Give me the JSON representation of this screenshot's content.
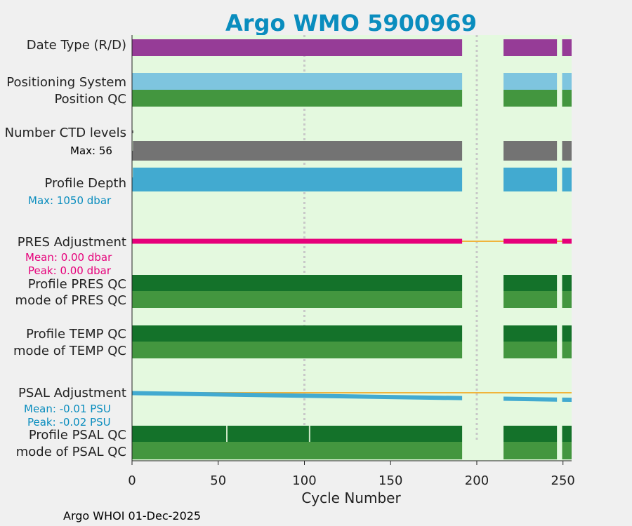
{
  "title": "Argo WMO 5900969",
  "footer": "Argo WHOI 01-Dec-2025",
  "colors": {
    "background": "#f0f0f0",
    "plot_bg": "#e4f9df",
    "title": "#0a8dbe",
    "date_type": "#963c97",
    "positioning": "#7ec5df",
    "qc_good": "#43963f",
    "qc_profile": "#14722a",
    "ctd": "#737373",
    "depth": "#42aad0",
    "pres_adj": "#e6007a",
    "psal_adj": "#42aad0",
    "zero_line": "#f0b43c",
    "ref_line": "#c8c8c8",
    "label": "#222222"
  },
  "chart_data": {
    "type": "bar",
    "xlabel": "Cycle Number",
    "xlim": [
      0,
      255
    ],
    "xticks": [
      0,
      50,
      100,
      150,
      200,
      250
    ],
    "reference_lines_x": [
      100,
      200
    ],
    "data_gaps": [
      [
        191.5,
        215.5
      ],
      [
        246.5,
        249.5
      ]
    ],
    "psal_qc_breaks": [
      55,
      103
    ],
    "rows": [
      {
        "key": "date_type",
        "label": "Date Type (R/D)"
      },
      {
        "key": "positioning",
        "label": "Positioning System"
      },
      {
        "key": "position_qc",
        "label": "Position QC"
      },
      {
        "key": "ctd_levels",
        "label": "Number CTD levels",
        "note": "Max: 56",
        "max": 56
      },
      {
        "key": "profile_depth",
        "label": "Profile Depth",
        "note": "Max: 1050 dbar",
        "max_dbar": 1050
      },
      {
        "key": "pres_adjustment",
        "label": "PRES Adjustment",
        "stats": [
          "Mean: 0.00 dbar",
          "Peak: 0.00 dbar"
        ],
        "mean": 0.0,
        "peak": 0.0
      },
      {
        "key": "profile_pres_qc",
        "label": "Profile PRES QC"
      },
      {
        "key": "mode_pres_qc",
        "label": "mode of PRES QC"
      },
      {
        "key": "profile_temp_qc",
        "label": "Profile TEMP QC"
      },
      {
        "key": "mode_temp_qc",
        "label": "mode of TEMP QC"
      },
      {
        "key": "psal_adjustment",
        "label": "PSAL Adjustment",
        "stats": [
          "Mean: -0.01 PSU",
          "Peak: -0.02 PSU"
        ],
        "mean": -0.01,
        "peak": -0.02,
        "trend_start": -0.001,
        "trend_end": -0.02
      },
      {
        "key": "profile_psal_qc",
        "label": "Profile PSAL QC"
      },
      {
        "key": "mode_psal_qc",
        "label": "mode of PSAL QC"
      }
    ]
  }
}
